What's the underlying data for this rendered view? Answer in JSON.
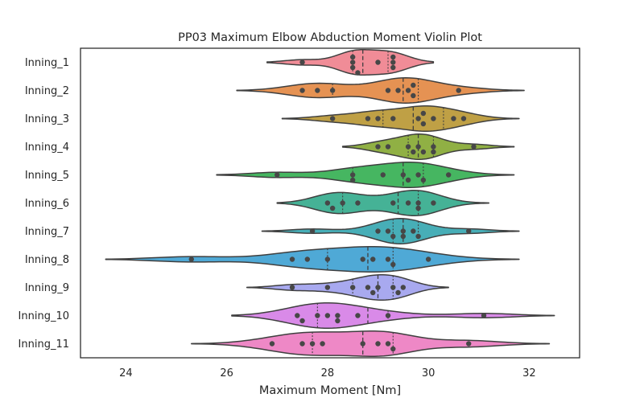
{
  "chart_data": {
    "type": "violin",
    "orientation": "horizontal",
    "title": "PP03 Maximum Elbow Abduction Moment Violin Plot",
    "xlabel": "Maximum Moment [Nm]",
    "ylabel": "",
    "xlim": [
      23.1,
      33.0
    ],
    "xticks": [
      24,
      26,
      28,
      30,
      32
    ],
    "grid": false,
    "legend": "none",
    "inner": "quartile",
    "categories": [
      "Inning_1",
      "Inning_2",
      "Inning_3",
      "Inning_4",
      "Inning_5",
      "Inning_6",
      "Inning_7",
      "Inning_8",
      "Inning_9",
      "Inning_10",
      "Inning_11"
    ],
    "series": [
      {
        "category": "Inning_1",
        "color": "#f08c97",
        "range": [
          26.8,
          30.1
        ],
        "quartiles": [
          28.5,
          28.7,
          29.2
        ],
        "points": [
          27.5,
          28.5,
          28.5,
          28.5,
          28.6,
          29.0,
          29.3,
          29.3,
          29.3
        ]
      },
      {
        "category": "Inning_2",
        "color": "#e59253",
        "range": [
          26.2,
          31.9
        ],
        "quartiles": [
          28.1,
          29.5,
          29.8
        ],
        "points": [
          27.5,
          27.8,
          28.1,
          29.2,
          29.4,
          29.6,
          29.7,
          29.7,
          30.6
        ]
      },
      {
        "category": "Inning_3",
        "color": "#bfa045",
        "range": [
          27.1,
          31.8
        ],
        "quartiles": [
          29.1,
          29.7,
          30.3
        ],
        "points": [
          28.1,
          28.8,
          29.0,
          29.3,
          29.8,
          29.9,
          29.9,
          30.1,
          30.5,
          30.7
        ]
      },
      {
        "category": "Inning_4",
        "color": "#90b044",
        "range": [
          28.3,
          31.7
        ],
        "quartiles": [
          29.6,
          29.8,
          30.1
        ],
        "points": [
          29.0,
          29.2,
          29.6,
          29.7,
          29.8,
          29.9,
          30.1,
          30.1,
          30.9
        ]
      },
      {
        "category": "Inning_5",
        "color": "#46b661",
        "range": [
          25.8,
          31.7
        ],
        "quartiles": [
          28.5,
          29.5,
          29.9
        ],
        "points": [
          27.0,
          28.5,
          28.5,
          29.1,
          29.5,
          29.6,
          29.8,
          29.9,
          30.4
        ]
      },
      {
        "category": "Inning_6",
        "color": "#45b296",
        "range": [
          27.0,
          31.2
        ],
        "quartiles": [
          28.3,
          29.4,
          29.8
        ],
        "points": [
          28.0,
          28.1,
          28.3,
          28.6,
          29.3,
          29.6,
          29.8,
          29.8,
          30.1
        ]
      },
      {
        "category": "Inning_7",
        "color": "#47aeb7",
        "range": [
          26.7,
          31.8
        ],
        "quartiles": [
          29.3,
          29.5,
          29.8
        ],
        "points": [
          27.7,
          29.0,
          29.2,
          29.3,
          29.5,
          29.5,
          29.7,
          29.8,
          30.8
        ]
      },
      {
        "category": "Inning_8",
        "color": "#4fa9d6",
        "range": [
          23.6,
          31.8
        ],
        "quartiles": [
          28.0,
          28.8,
          29.3
        ],
        "points": [
          25.3,
          27.3,
          27.6,
          28.0,
          28.7,
          28.9,
          29.2,
          29.3,
          30.0
        ]
      },
      {
        "category": "Inning_9",
        "color": "#a8a9ef",
        "range": [
          26.4,
          30.4
        ],
        "quartiles": [
          28.5,
          29.0,
          29.3
        ],
        "points": [
          27.3,
          28.0,
          28.5,
          28.8,
          28.9,
          29.0,
          29.3,
          29.4,
          29.5
        ]
      },
      {
        "category": "Inning_10",
        "color": "#d98ae8",
        "range": [
          26.1,
          32.5
        ],
        "quartiles": [
          27.8,
          28.8,
          29.2
        ],
        "points": [
          27.4,
          27.5,
          27.8,
          28.0,
          28.2,
          28.2,
          28.6,
          29.2,
          31.1
        ]
      },
      {
        "category": "Inning_11",
        "color": "#ee88c6",
        "range": [
          25.3,
          32.4
        ],
        "quartiles": [
          27.7,
          28.7,
          29.3
        ],
        "points": [
          26.9,
          27.5,
          27.7,
          27.9,
          28.7,
          29.0,
          29.2,
          29.3,
          30.8
        ]
      }
    ]
  }
}
